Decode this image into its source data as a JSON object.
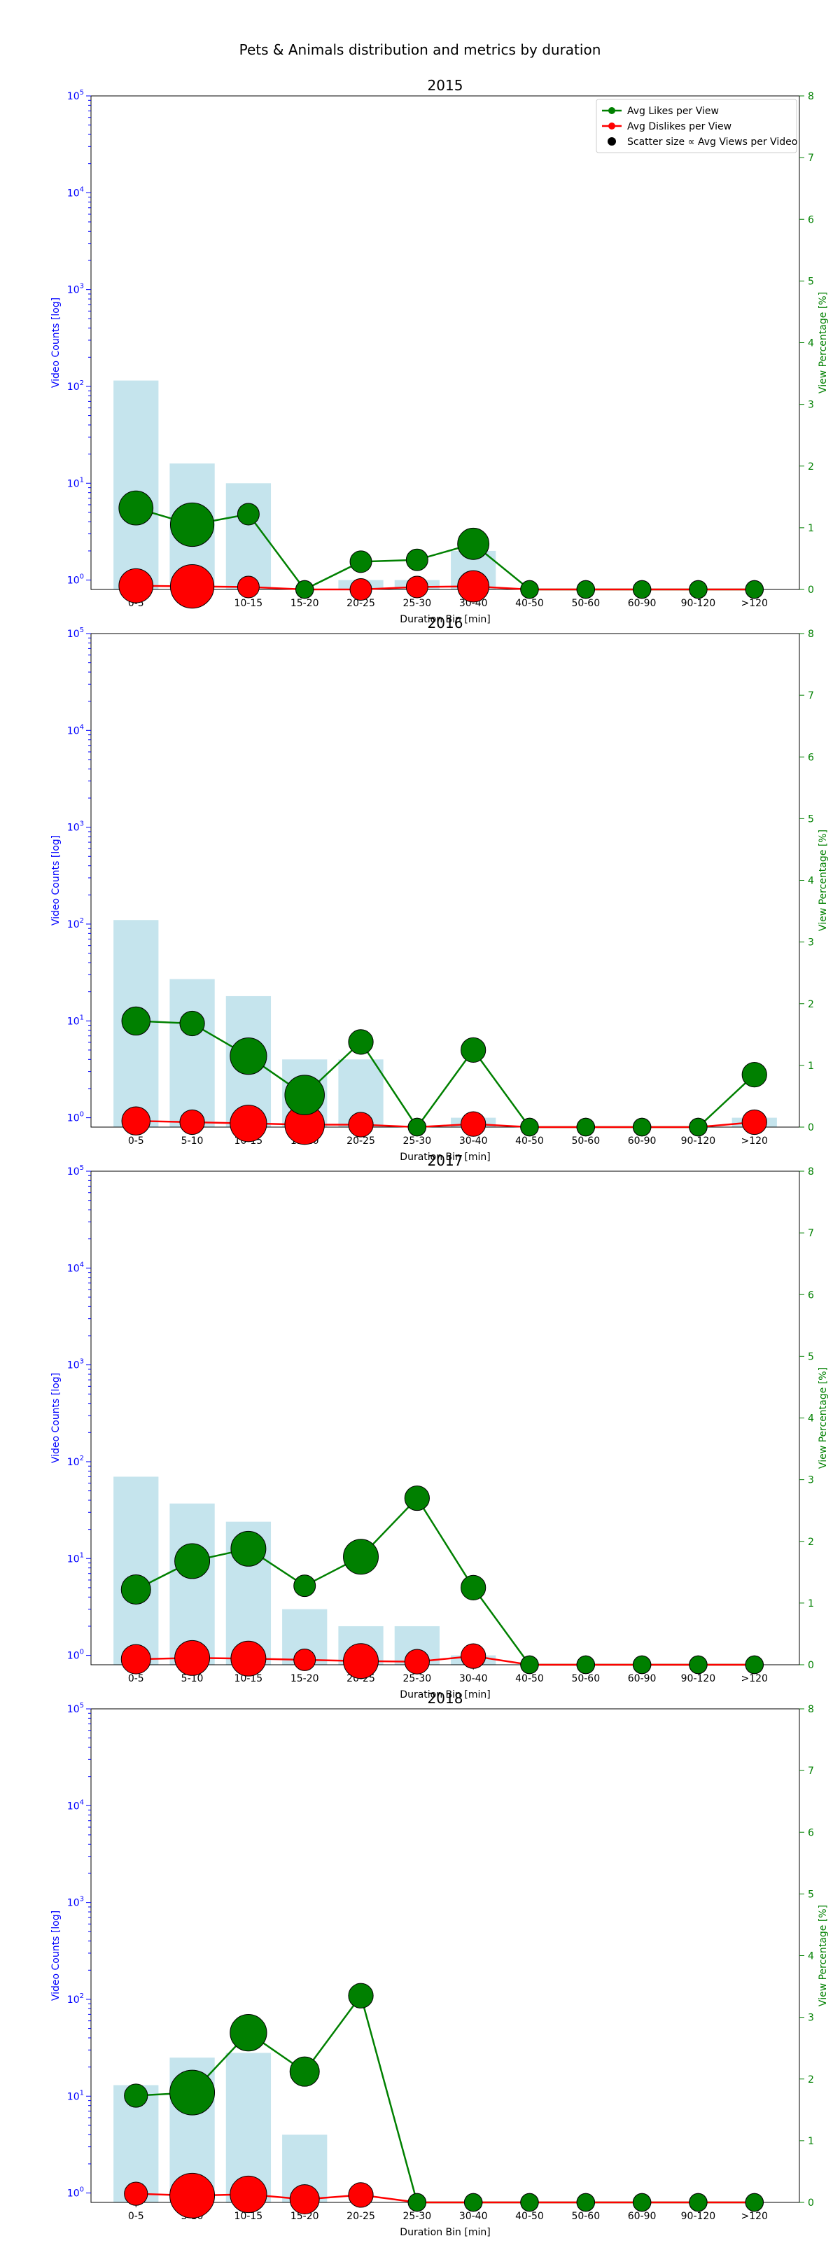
{
  "chart_data": {
    "type": "bar",
    "title": "Pets & Animals distribution and metrics by duration",
    "categories": [
      "0-5",
      "5-10",
      "10-15",
      "15-20",
      "20-25",
      "25-30",
      "30-40",
      "40-50",
      "50-60",
      "60-90",
      "90-120",
      ">120"
    ],
    "xlabel": "Duration Bin [min]",
    "ylabel_left": "Video Counts [log]",
    "ylabel_right": "View Percentage [%]",
    "left_scale": "log",
    "ylim_left": [
      0.8,
      100000
    ],
    "left_ticks": [
      1,
      10,
      100,
      1000,
      10000,
      100000
    ],
    "left_tick_labels": [
      {
        "base": "10",
        "exp": "0"
      },
      {
        "base": "10",
        "exp": "1"
      },
      {
        "base": "10",
        "exp": "2"
      },
      {
        "base": "10",
        "exp": "3"
      },
      {
        "base": "10",
        "exp": "4"
      },
      {
        "base": "10",
        "exp": "5"
      }
    ],
    "ylim_right": [
      0,
      8
    ],
    "right_ticks": [
      "0",
      "1",
      "2",
      "3",
      "4",
      "5",
      "6",
      "7",
      "8"
    ],
    "legend": {
      "position": "top-right",
      "entries": [
        "Avg Likes per View",
        "Avg Dislikes per View",
        "Scatter size ∝ Avg Views per Video"
      ]
    },
    "colors": {
      "bar": "#add8e6",
      "likes": "#008000",
      "dislikes": "#ff0000",
      "left_axis": "#0000ff",
      "right_axis": "#008000"
    },
    "subplots": [
      {
        "title": "2015",
        "counts": [
          115,
          16,
          10,
          0,
          1,
          1,
          2,
          0,
          0,
          0,
          0,
          0
        ],
        "likes": [
          1.32,
          1.05,
          1.22,
          0,
          0.45,
          0.48,
          0.74,
          0,
          0,
          0,
          0,
          0
        ],
        "dislikes": [
          0.06,
          0.05,
          0.04,
          0,
          0,
          0.04,
          0.05,
          0,
          0,
          0,
          0,
          0
        ],
        "marker_size": [
          1.5,
          2.8,
          0.4,
          0.2,
          0.4,
          0.4,
          1.2,
          0.2,
          0.2,
          0.2,
          0.2,
          0.2
        ]
      },
      {
        "title": "2016",
        "counts": [
          110,
          27,
          18,
          4,
          4,
          0,
          1,
          0,
          0,
          0,
          0,
          1
        ],
        "likes": [
          1.72,
          1.68,
          1.15,
          0.52,
          1.38,
          0,
          1.25,
          0,
          0,
          0,
          0,
          0.85
        ],
        "dislikes": [
          0.1,
          0.08,
          0.06,
          0.04,
          0.04,
          0,
          0.05,
          0,
          0,
          0,
          0,
          0.08
        ],
        "marker_size": [
          0.9,
          0.6,
          1.8,
          2.2,
          0.6,
          0.2,
          0.6,
          0.2,
          0.2,
          0.2,
          0.2,
          0.6
        ]
      },
      {
        "title": "2017",
        "counts": [
          70,
          37,
          24,
          3,
          2,
          2,
          1,
          0,
          0,
          0,
          0,
          0
        ],
        "likes": [
          1.22,
          1.68,
          1.88,
          1.28,
          1.75,
          2.7,
          1.25,
          0,
          0,
          0,
          0,
          0
        ],
        "dislikes": [
          0.09,
          0.11,
          0.1,
          0.08,
          0.06,
          0.05,
          0.14,
          0,
          0,
          0,
          0,
          0
        ],
        "marker_size": [
          1.0,
          1.6,
          1.6,
          0.4,
          1.6,
          0.6,
          0.6,
          0.2,
          0.2,
          0.2,
          0.2,
          0.2
        ]
      },
      {
        "title": "2018",
        "counts": [
          13,
          25,
          28,
          4,
          0,
          0,
          0,
          0,
          0,
          0,
          0,
          0
        ],
        "likes": [
          1.73,
          1.78,
          2.75,
          2.12,
          3.35,
          0,
          0,
          0,
          0,
          0,
          0,
          0
        ],
        "dislikes": [
          0.14,
          0.11,
          0.13,
          0.05,
          0.12,
          0,
          0,
          0,
          0,
          0,
          0,
          0
        ],
        "marker_size": [
          0.5,
          3.0,
          1.8,
          1.0,
          0.6,
          0.2,
          0.2,
          0.2,
          0.2,
          0.2,
          0.2,
          0.2
        ]
      }
    ]
  }
}
